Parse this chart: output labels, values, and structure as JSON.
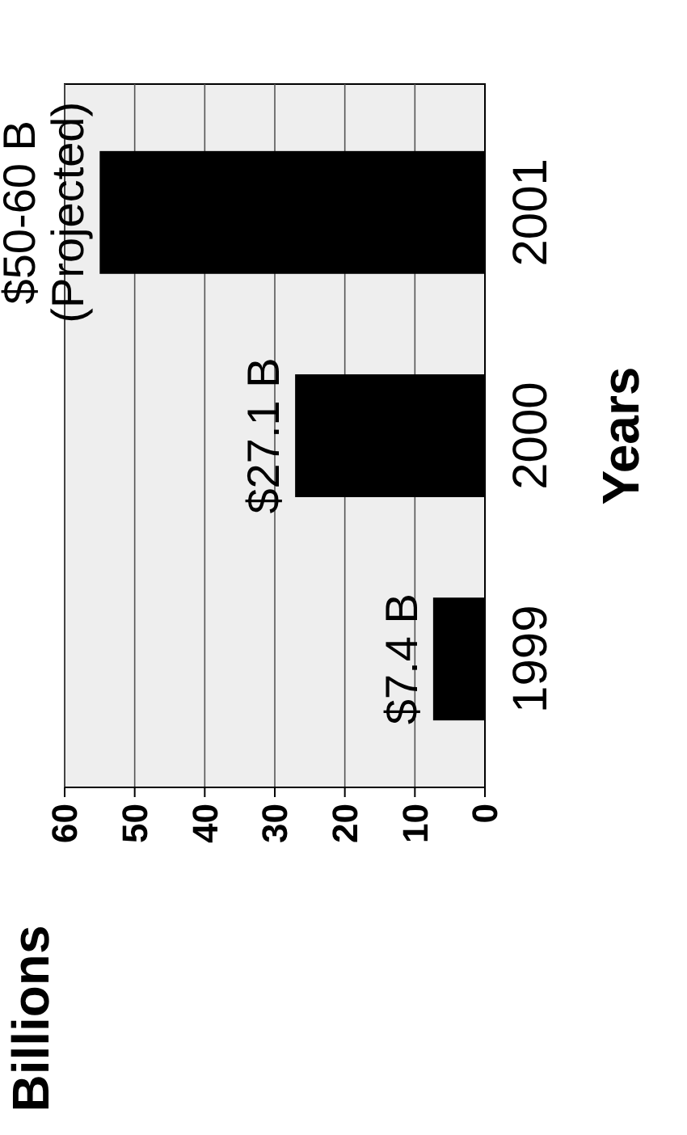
{
  "chart_data": {
    "type": "bar",
    "orientation": "horizontal",
    "ylabel": "Years",
    "annotations": [
      "Billions"
    ],
    "categories": [
      "2001",
      "2000",
      "1999"
    ],
    "values": [
      55,
      27.1,
      7.4
    ],
    "value_labels": [
      "$50-60 B\n(Projected)",
      "$27.1 B",
      "$7.4 B"
    ],
    "color": "#000000",
    "xlim": [
      60,
      0
    ],
    "xticks": [
      60,
      50,
      40,
      30,
      20,
      10,
      0
    ],
    "grid": "x"
  }
}
